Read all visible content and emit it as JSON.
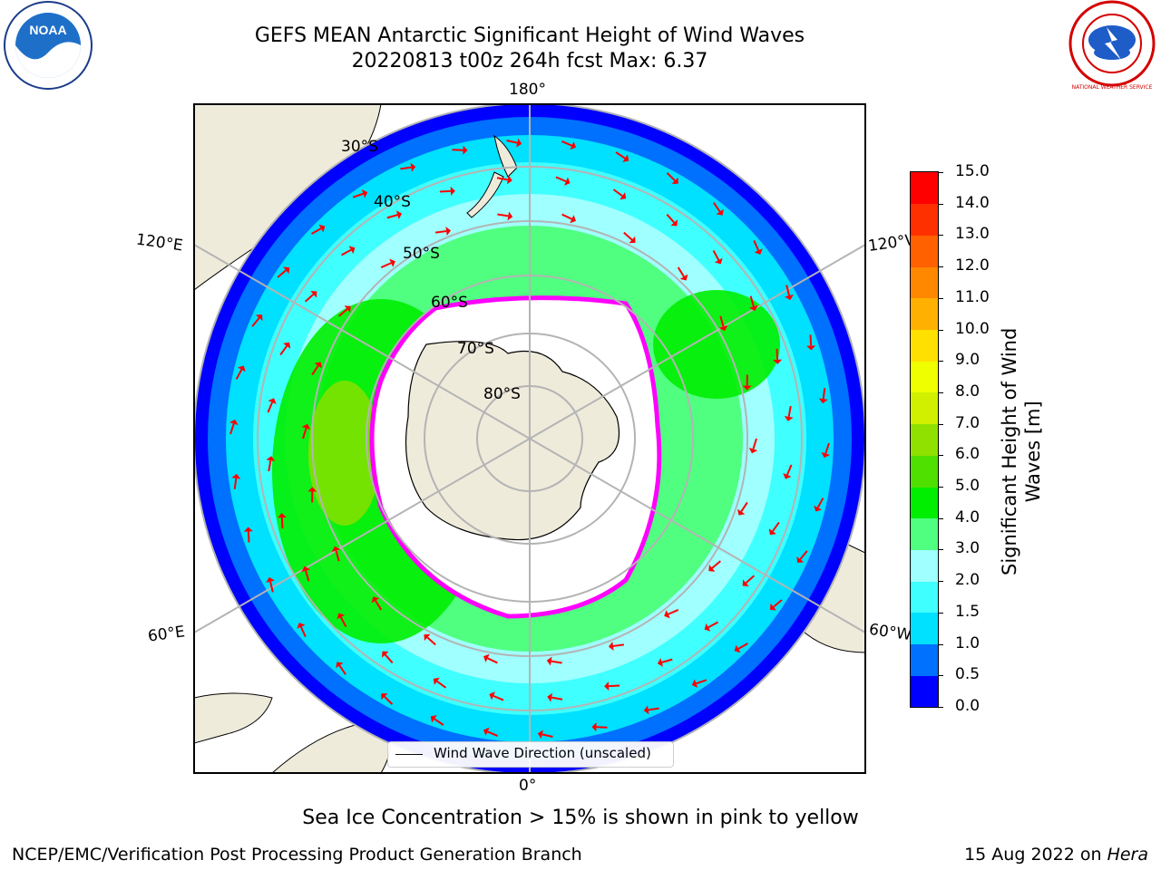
{
  "title_line1": "GEFS MEAN Antarctic Significant Height of Wind Waves",
  "title_line2": "20220813 t00z 264h fcst   Max: 6.37",
  "logos": {
    "left": "NOAA",
    "right": "NATIONAL WEATHER SERVICE"
  },
  "map": {
    "lon_labels": {
      "top": "180°",
      "bottom": "0°",
      "upper_left": "120°E",
      "upper_right": "120°W",
      "lower_left": "60°E",
      "lower_right": "60°W"
    },
    "lat_labels": [
      "30°S",
      "40°S",
      "50°S",
      "60°S",
      "70°S",
      "80°S"
    ],
    "legend_text": "Wind Wave Direction (unscaled)",
    "colors": {
      "land": "#efebdb",
      "arrow": "#ff0000",
      "grid": "#b4b4b4",
      "ice_edge": "#ff00ff"
    }
  },
  "colorbar": {
    "label_line1": "Significant Height of Wind",
    "label_line2": "Waves [m]",
    "ticks": [
      "0.0",
      "0.5",
      "1.0",
      "1.5",
      "2.0",
      "3.0",
      "4.0",
      "5.0",
      "6.0",
      "7.0",
      "8.0",
      "9.0",
      "10.0",
      "11.0",
      "12.0",
      "13.0",
      "14.0",
      "15.0"
    ],
    "colors": [
      "#0000ff",
      "#0070ff",
      "#00e0ff",
      "#40ffff",
      "#a0ffff",
      "#50ff80",
      "#00ee00",
      "#50e000",
      "#90e000",
      "#d0f000",
      "#f0ff00",
      "#ffe000",
      "#ffb000",
      "#ff8800",
      "#ff6000",
      "#ff3000",
      "#ff0000"
    ]
  },
  "note": "Sea Ice Concentration > 15% is shown in pink to yellow",
  "footer_left": "NCEP/EMC/Verification Post Processing Product Generation Branch",
  "footer_date": "15 Aug 2022 on ",
  "footer_machine": "Hera"
}
